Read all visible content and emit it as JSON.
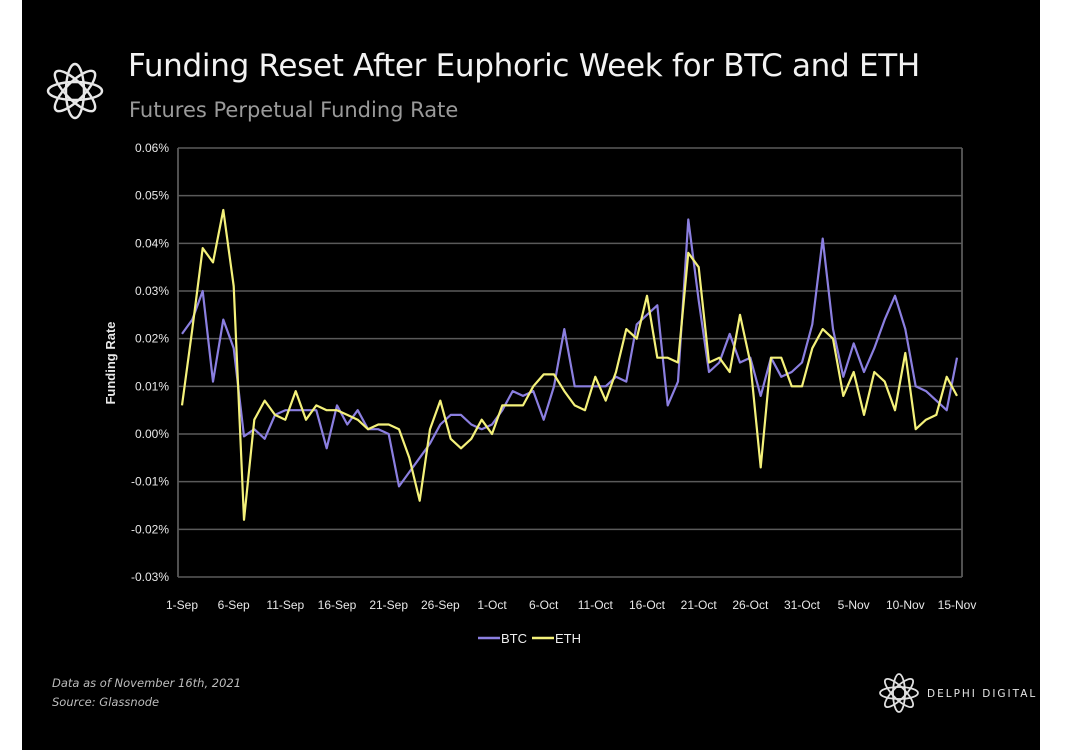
{
  "header": {
    "title": "Funding Reset After Euphoric Week for BTC and ETH",
    "subtitle": "Futures Perpetual Funding Rate"
  },
  "footer": {
    "data_note": "Data as of November 16th, 2021",
    "source": "Source: Glassnode",
    "brand": "DELPHI DIGITAL"
  },
  "colors": {
    "btc": "#8b7fe0",
    "eth": "#f4f17a",
    "grid": "#5a5a5a",
    "background": "#000000"
  },
  "chart_data": {
    "type": "line",
    "title": "Funding Reset After Euphoric Week for BTC and ETH",
    "subtitle": "Futures Perpetual Funding Rate",
    "xlabel": "",
    "ylabel": "Funding Rate",
    "ylim": [
      -0.03,
      0.06
    ],
    "yticks": [
      -0.03,
      -0.02,
      -0.01,
      0.0,
      0.01,
      0.02,
      0.03,
      0.04,
      0.05,
      0.06
    ],
    "ytick_labels": [
      "-0.03%",
      "-0.02%",
      "-0.01%",
      "0.00%",
      "0.01%",
      "0.02%",
      "0.03%",
      "0.04%",
      "0.05%",
      "0.06%"
    ],
    "xticks": [
      0,
      5,
      10,
      15,
      20,
      25,
      30,
      35,
      40,
      45,
      50,
      55,
      60,
      65,
      70,
      75
    ],
    "xtick_labels": [
      "1-Sep",
      "6-Sep",
      "11-Sep",
      "16-Sep",
      "21-Sep",
      "26-Sep",
      "1-Oct",
      "6-Oct",
      "11-Oct",
      "16-Oct",
      "21-Oct",
      "26-Oct",
      "31-Oct",
      "5-Nov",
      "10-Nov",
      "15-Nov"
    ],
    "xlim": [
      0,
      75
    ],
    "grid": true,
    "legend": "bottom-center",
    "series": [
      {
        "name": "BTC",
        "values": [
          0.021,
          0.024,
          0.03,
          0.011,
          0.024,
          0.018,
          -0.0005,
          0.001,
          -0.001,
          0.004,
          0.005,
          0.005,
          0.005,
          0.005,
          -0.003,
          0.006,
          0.002,
          0.005,
          0.001,
          0.001,
          0.0,
          -0.011,
          -0.008,
          -0.005,
          -0.002,
          0.002,
          0.004,
          0.004,
          0.002,
          0.001,
          0.002,
          0.005,
          0.009,
          0.008,
          0.009,
          0.003,
          0.01,
          0.022,
          0.01,
          0.01,
          0.01,
          0.01,
          0.012,
          0.011,
          0.023,
          0.025,
          0.027,
          0.006,
          0.011,
          0.045,
          0.028,
          0.013,
          0.015,
          0.021,
          0.015,
          0.016,
          0.008,
          0.016,
          0.012,
          0.013,
          0.015,
          0.023,
          0.041,
          0.022,
          0.012,
          0.019,
          0.013,
          0.018,
          0.024,
          0.029,
          0.022,
          0.01,
          0.009,
          0.007,
          0.005,
          0.016
        ]
      },
      {
        "name": "ETH",
        "values": [
          0.006,
          0.022,
          0.039,
          0.036,
          0.047,
          0.031,
          -0.018,
          0.003,
          0.007,
          0.004,
          0.003,
          0.009,
          0.003,
          0.006,
          0.005,
          0.005,
          0.004,
          0.003,
          0.001,
          0.002,
          0.002,
          0.001,
          -0.005,
          -0.014,
          0.001,
          0.007,
          -0.001,
          -0.003,
          -0.001,
          0.003,
          0.0,
          0.006,
          0.006,
          0.006,
          0.01,
          0.0125,
          0.0125,
          0.009,
          0.006,
          0.005,
          0.012,
          0.007,
          0.013,
          0.022,
          0.02,
          0.029,
          0.016,
          0.016,
          0.015,
          0.038,
          0.035,
          0.015,
          0.016,
          0.013,
          0.025,
          0.015,
          -0.007,
          0.016,
          0.016,
          0.01,
          0.01,
          0.018,
          0.022,
          0.02,
          0.008,
          0.013,
          0.004,
          0.013,
          0.011,
          0.005,
          0.017,
          0.001,
          0.003,
          0.004,
          0.012,
          0.008
        ]
      }
    ]
  }
}
